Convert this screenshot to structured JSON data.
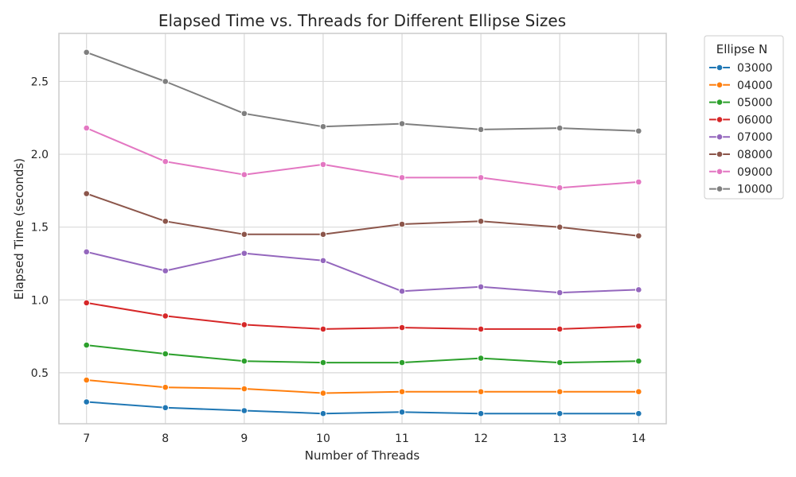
{
  "chart_data": {
    "type": "line",
    "title": "Elapsed Time vs. Threads for Different Ellipse Sizes",
    "xlabel": "Number of Threads",
    "ylabel": "Elapsed Time (seconds)",
    "x": [
      7,
      8,
      9,
      10,
      11,
      12,
      13,
      14
    ],
    "xlim": [
      6.65,
      14.35
    ],
    "ylim": [
      0.15,
      2.83
    ],
    "yticks": [
      0.5,
      1.0,
      1.5,
      2.0,
      2.5
    ],
    "ytick_labels": [
      "0.5",
      "1.0",
      "1.5",
      "2.0",
      "2.5"
    ],
    "xtick_labels": [
      "7",
      "8",
      "9",
      "10",
      "11",
      "12",
      "13",
      "14"
    ],
    "grid": true,
    "legend": {
      "title": "Ellipse N",
      "placement": "outside-top-right"
    },
    "series": [
      {
        "name": "03000",
        "color": "#1f77b4",
        "values": [
          0.3,
          0.26,
          0.24,
          0.22,
          0.23,
          0.22,
          0.22,
          0.22
        ]
      },
      {
        "name": "04000",
        "color": "#ff7f0e",
        "values": [
          0.45,
          0.4,
          0.39,
          0.36,
          0.37,
          0.37,
          0.37,
          0.37
        ]
      },
      {
        "name": "05000",
        "color": "#2ca02c",
        "values": [
          0.69,
          0.63,
          0.58,
          0.57,
          0.57,
          0.6,
          0.57,
          0.58
        ]
      },
      {
        "name": "06000",
        "color": "#d62728",
        "values": [
          0.98,
          0.89,
          0.83,
          0.8,
          0.81,
          0.8,
          0.8,
          0.82
        ]
      },
      {
        "name": "07000",
        "color": "#9467bd",
        "values": [
          1.33,
          1.2,
          1.32,
          1.27,
          1.06,
          1.09,
          1.05,
          1.07
        ]
      },
      {
        "name": "08000",
        "color": "#8c564b",
        "values": [
          1.73,
          1.54,
          1.45,
          1.45,
          1.52,
          1.54,
          1.5,
          1.44
        ]
      },
      {
        "name": "09000",
        "color": "#e377c2",
        "values": [
          2.18,
          1.95,
          1.86,
          1.93,
          1.84,
          1.84,
          1.77,
          1.81
        ]
      },
      {
        "name": "10000",
        "color": "#7f7f7f",
        "values": [
          2.7,
          2.5,
          2.28,
          2.19,
          2.21,
          2.17,
          2.18,
          2.16
        ]
      }
    ]
  }
}
